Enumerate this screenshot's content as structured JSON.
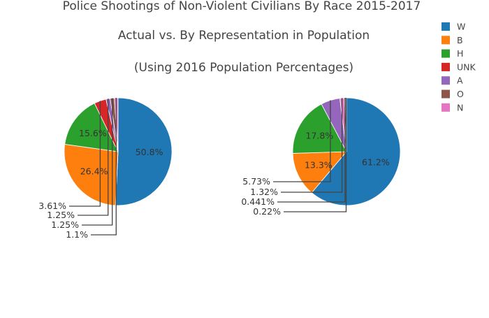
{
  "chart_data": {
    "type": "pie",
    "title": [
      "Police Shootings of Non-Violent Civilians By Race 2015-2017",
      "Actual vs. By Representation in Population",
      "(Using 2016 Population Percentages)"
    ],
    "legend": {
      "placement": "top-right",
      "entries": [
        {
          "label": "W",
          "color": "#1f77b4"
        },
        {
          "label": "B",
          "color": "#ff7f0e"
        },
        {
          "label": "H",
          "color": "#2ca02c"
        },
        {
          "label": "UNK",
          "color": "#d62728"
        },
        {
          "label": "A",
          "color": "#9467bd"
        },
        {
          "label": "O",
          "color": "#8c564b"
        },
        {
          "label": "N",
          "color": "#e377c2"
        }
      ]
    },
    "pies": [
      {
        "slices": [
          {
            "category": "W",
            "value": 50.8,
            "label": "50.8%"
          },
          {
            "category": "B",
            "value": 26.4,
            "label": "26.4%"
          },
          {
            "category": "H",
            "value": 15.6,
            "label": "15.6%"
          },
          {
            "category": "UNK",
            "value": 3.61,
            "label": "3.61%"
          },
          {
            "category": "A",
            "value": 1.25,
            "label": "1.25%"
          },
          {
            "category": "O",
            "value": 1.25,
            "label": "1.25%"
          },
          {
            "category": "N",
            "value": 1.1,
            "label": "1.1%"
          }
        ]
      },
      {
        "slices": [
          {
            "category": "W",
            "value": 61.2,
            "label": "61.2%"
          },
          {
            "category": "B",
            "value": 13.3,
            "label": "13.3%"
          },
          {
            "category": "H",
            "value": 17.8,
            "label": "17.8%"
          },
          {
            "category": "A",
            "value": 5.73,
            "label": "5.73%"
          },
          {
            "category": "N",
            "value": 1.32,
            "label": "1.32%"
          },
          {
            "category": "O",
            "value": 0.441,
            "label": "0.441%"
          },
          {
            "category": "UNK",
            "value": 0.22,
            "label": "0.22%"
          }
        ]
      }
    ]
  }
}
